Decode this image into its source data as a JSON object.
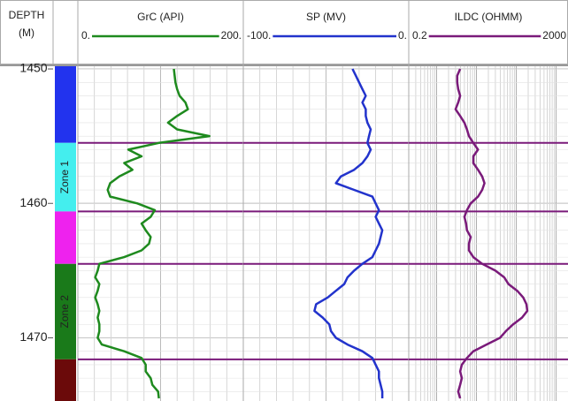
{
  "chart_data": {
    "type": "well-log",
    "x_title": "DEPTH",
    "x_unit": "(M)",
    "xlim": [
      1449.8,
      1474.7
    ],
    "xticks": [
      1450,
      1460,
      1470
    ],
    "x": [
      1450,
      1450.5,
      1451,
      1451.5,
      1452,
      1452.5,
      1453,
      1453.5,
      1454,
      1454.5,
      1455,
      1455.5,
      1456,
      1456.5,
      1457,
      1457.5,
      1458,
      1458.5,
      1459,
      1459.5,
      1460,
      1460.5,
      1461,
      1461.5,
      1462,
      1462.5,
      1463,
      1463.5,
      1464,
      1464.5,
      1465,
      1465.5,
      1466,
      1466.5,
      1467,
      1467.5,
      1468,
      1468.5,
      1469,
      1469.5,
      1470,
      1470.5,
      1471,
      1471.5,
      1472,
      1472.5,
      1473,
      1473.5,
      1474,
      1474.5
    ],
    "zones": [
      {
        "top": 1449.8,
        "base": 1455.5,
        "color": "#2233ee"
      },
      {
        "top": 1455.5,
        "base": 1460.6,
        "color": "#44eeee",
        "name": "Zone 1"
      },
      {
        "top": 1460.6,
        "base": 1464.5,
        "color": "#ee22ee"
      },
      {
        "top": 1464.5,
        "base": 1471.6,
        "color": "#1a7a1a",
        "name": "Zone 2"
      },
      {
        "top": 1471.6,
        "base": 1474.7,
        "color": "#6b0a0a"
      }
    ],
    "zone_line_color": "#7a1a7a",
    "series": [
      {
        "name": "GrC (API)",
        "color": "#1e8a1e",
        "lim": [
          0,
          200
        ],
        "log": false,
        "ticks": [
          {
            "value": 0,
            "label": "0."
          },
          {
            "value": 200,
            "label": "200."
          }
        ],
        "values": [
          116,
          117,
          118,
          120,
          123,
          130,
          133,
          120,
          109,
          120,
          159,
          98,
          61,
          77,
          56,
          66,
          50,
          39,
          36,
          39,
          72,
          93,
          88,
          77,
          82,
          88,
          86,
          77,
          56,
          26,
          24,
          21,
          26,
          24,
          21,
          24,
          26,
          24,
          26,
          26,
          24,
          29,
          56,
          77,
          82,
          82,
          88,
          90,
          97,
          98
        ]
      },
      {
        "name": "SP (MV)",
        "color": "#2233cc",
        "lim": [
          -100,
          0
        ],
        "log": false,
        "ticks": [
          {
            "value": -100,
            "label": "-100."
          },
          {
            "value": 0,
            "label": "0."
          }
        ],
        "values": [
          -34,
          -32,
          -30,
          -28,
          -26,
          -28,
          -26,
          -26,
          -25,
          -23,
          -24,
          -25,
          -23,
          -25,
          -28,
          -33,
          -41,
          -44,
          -33,
          -22,
          -20,
          -18,
          -20,
          -18,
          -16,
          -17,
          -18,
          -20,
          -22,
          -28,
          -33,
          -37,
          -39,
          -44,
          -49,
          -56,
          -57,
          -52,
          -48,
          -47,
          -44,
          -37,
          -28,
          -22,
          -20,
          -18,
          -18,
          -17,
          -16,
          -16
        ]
      },
      {
        "name": "ILDC (OHMM)",
        "color": "#7a1a7a",
        "lim": [
          0.2,
          2000
        ],
        "log": true,
        "ticks": [
          0.2,
          2000
        ],
        "values": [
          3.9,
          3.3,
          3.3,
          3.5,
          3.9,
          3.5,
          3.0,
          3.9,
          5.0,
          5.8,
          6.5,
          8.4,
          11,
          8.4,
          8.4,
          11,
          14,
          16,
          14,
          11,
          7.2,
          5.8,
          5.0,
          5.5,
          5.8,
          7.2,
          6.5,
          6.5,
          8.4,
          14,
          30,
          50,
          64,
          106,
          150,
          181,
          190,
          140,
          84,
          55,
          39,
          18,
          8.4,
          5.8,
          4.3,
          3.9,
          4.3,
          3.9,
          3.5,
          3.9
        ]
      }
    ]
  }
}
